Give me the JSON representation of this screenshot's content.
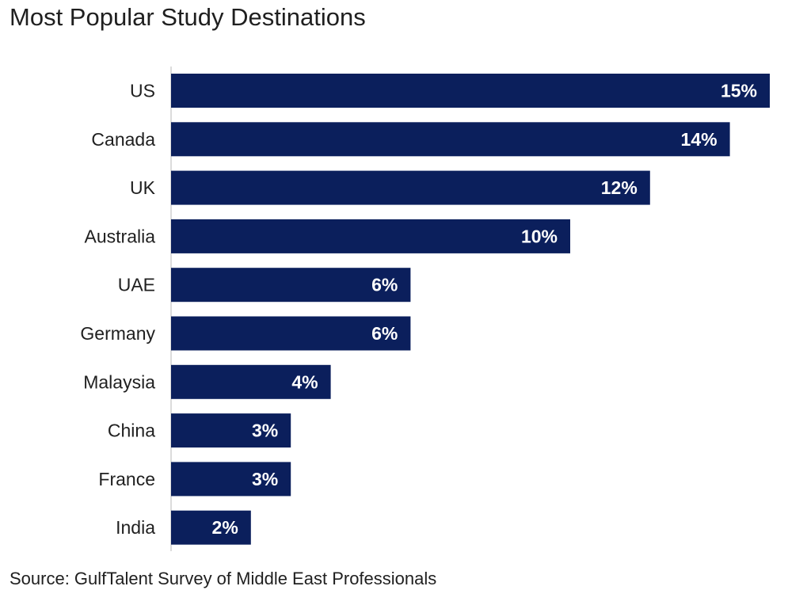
{
  "chart_data": {
    "type": "bar",
    "orientation": "horizontal",
    "title": "Most Popular Study Destinations",
    "source": "Source: GulfTalent Survey of Middle East Professionals",
    "categories": [
      "US",
      "Canada",
      "UK",
      "Australia",
      "UAE",
      "Germany",
      "Malaysia",
      "China",
      "France",
      "India"
    ],
    "values": [
      15,
      14,
      12,
      10,
      6,
      6,
      4,
      3,
      3,
      2
    ],
    "value_labels": [
      "15%",
      "14%",
      "12%",
      "10%",
      "6%",
      "6%",
      "4%",
      "3%",
      "3%",
      "2%"
    ],
    "unit": "%",
    "xlim": [
      0,
      19
    ],
    "grid": false,
    "legend": "none",
    "bar_color": "#0b1f5c",
    "label_color": "#ffffff"
  }
}
